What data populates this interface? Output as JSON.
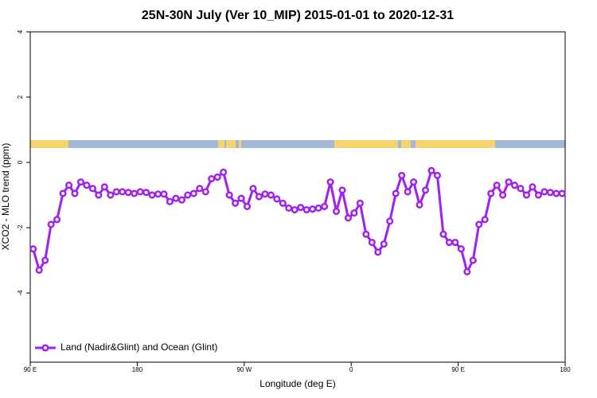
{
  "chart_data": {
    "type": "line",
    "title": "25N-30N July (Ver 10_MIP)   2015-01-01 to 2020-12-31",
    "x_label": "Longitude (deg E)",
    "y_label": "XCO2 - MLO trend (ppm)",
    "x": [
      92.5,
      97.5,
      102.5,
      107.5,
      112.5,
      117.5,
      122.5,
      127.5,
      132.5,
      137.5,
      142.5,
      147.5,
      152.5,
      157.5,
      162.5,
      167.5,
      172.5,
      177.5,
      182.5,
      187.5,
      192.5,
      197.5,
      202.5,
      207.5,
      212.5,
      217.5,
      222.5,
      227.5,
      232.5,
      237.5,
      242.5,
      247.5,
      252.5,
      257.5,
      262.5,
      267.5,
      272.5,
      277.5,
      282.5,
      287.5,
      292.5,
      297.5,
      302.5,
      307.5,
      312.5,
      317.5,
      322.5,
      327.5,
      332.5,
      337.5,
      342.5,
      347.5,
      352.5,
      357.5,
      362.5,
      367.5,
      372.5,
      377.5,
      382.5,
      387.5,
      392.5,
      397.5,
      402.5,
      407.5,
      412.5,
      417.5,
      422.5,
      427.5,
      432.5,
      437.5,
      442.5,
      447.5,
      452.5,
      457.5,
      462.5,
      467.5,
      472.5,
      477.5,
      482.5,
      487.5,
      492.5,
      497.5,
      502.5,
      507.5,
      512.5,
      517.5,
      522.5,
      527.5,
      532.5,
      537.5
    ],
    "series": [
      {
        "name": "Land (Nadir&Glint) and Ocean (Glint)",
        "color": "#a020f0",
        "values": [
          -2.65,
          -3.3,
          -3.0,
          -1.9,
          -1.75,
          -0.95,
          -0.7,
          -0.95,
          -0.6,
          -0.7,
          -0.8,
          -1.0,
          -0.75,
          -1.0,
          -0.9,
          -0.9,
          -0.92,
          -0.95,
          -0.9,
          -0.92,
          -1.0,
          -0.97,
          -0.97,
          -1.2,
          -1.1,
          -1.15,
          -1.0,
          -0.95,
          -0.8,
          -0.9,
          -0.5,
          -0.45,
          -0.3,
          -1.0,
          -1.25,
          -1.1,
          -1.35,
          -0.8,
          -1.05,
          -0.97,
          -1.0,
          -1.12,
          -1.25,
          -1.4,
          -1.45,
          -1.38,
          -1.45,
          -1.43,
          -1.4,
          -1.35,
          -0.6,
          -1.5,
          -0.85,
          -1.7,
          -1.55,
          -1.25,
          -2.2,
          -2.45,
          -2.75,
          -2.5,
          -1.8,
          -0.95,
          -0.4,
          -0.9,
          -0.6,
          -1.3,
          -0.85,
          -0.25,
          -0.4,
          -2.2,
          -2.45,
          -2.45,
          -2.65,
          -3.35,
          -3.0,
          -1.9,
          -1.75,
          -0.95,
          -0.7,
          -1.0,
          -0.6,
          -0.7,
          -0.8,
          -1.0,
          -0.75,
          -1.0,
          -0.9,
          -0.92,
          -0.95,
          -0.95
        ]
      }
    ],
    "xlim": [
      90,
      540
    ],
    "xticks": [
      {
        "value": 90,
        "label": "90 E"
      },
      180,
      {
        "value": 270,
        "label": "90 W"
      },
      {
        "value": 360,
        "label": "0"
      },
      {
        "value": 450,
        "label": "90 E"
      },
      {
        "value": 540,
        "label": "180"
      }
    ],
    "ylim": [
      -6.12,
      4
    ],
    "yticks": [
      -4,
      -2,
      0,
      2,
      4
    ],
    "legend": "bottom-left"
  }
}
